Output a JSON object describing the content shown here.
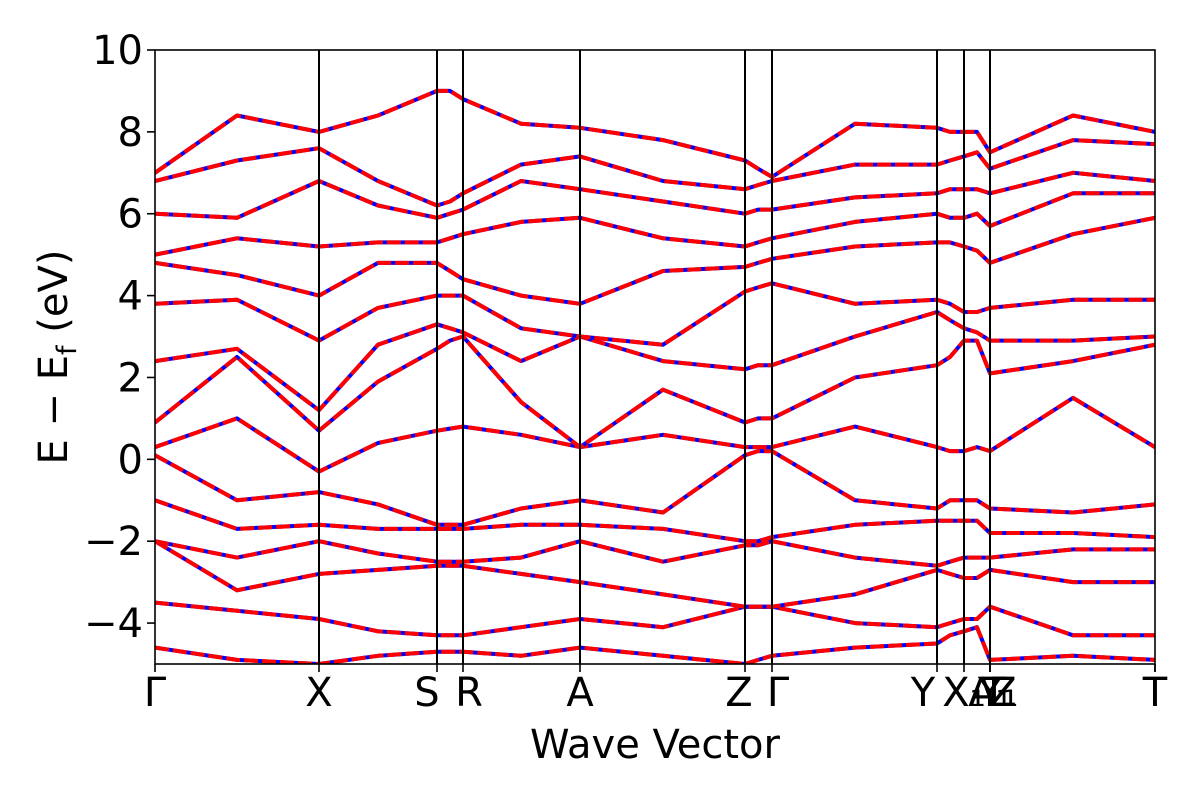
{
  "chart_data": {
    "type": "line",
    "xlabel": "Wave Vector",
    "ylabel_parts": {
      "main": "E − E",
      "sub": "f",
      "unit": " (eV)"
    },
    "ylim": [
      -5,
      10
    ],
    "yticks": [
      -4,
      -2,
      0,
      2,
      4,
      6,
      8,
      10
    ],
    "ytick_labels": [
      "−4",
      "−2",
      "0",
      "2",
      "4",
      "6",
      "8",
      "10"
    ],
    "x_range": [
      0,
      1000
    ],
    "high_symmetry_points": [
      {
        "label": "Γ",
        "x": 0
      },
      {
        "label": "X",
        "x": 164
      },
      {
        "label": "S",
        "x": 282
      },
      {
        "label": "R",
        "x": 308
      },
      {
        "label": "A",
        "x": 425
      },
      {
        "label": "Z",
        "x": 590
      },
      {
        "label": "Γ",
        "x": 617
      },
      {
        "label": "Y",
        "x": 782
      },
      {
        "label": "X₁",
        "x": 809
      },
      {
        "label": "A₁",
        "x": 835
      },
      {
        "label": "T",
        "x": 835
      },
      {
        "label": "Y₁",
        "x": 835
      },
      {
        "label": "Z",
        "x": 1000
      },
      {
        "label": "T",
        "x": 1000
      }
    ],
    "bands": [
      {
        "name": "",
        "x": [
          0,
          82,
          164,
          223,
          282,
          295,
          308,
          366,
          425,
          508,
          590,
          603,
          617,
          700,
          782,
          795,
          809,
          822,
          835,
          918,
          1000
        ],
        "y": [
          -4.6,
          -4.9,
          -5.0,
          -4.8,
          -4.7,
          -4.7,
          -4.7,
          -4.8,
          -4.6,
          -4.8,
          -5.0,
          -4.9,
          -4.8,
          -4.6,
          -4.5,
          -4.3,
          -4.2,
          -4.1,
          -4.9,
          -4.8,
          -4.9
        ]
      },
      {
        "name": "",
        "x": [
          0,
          82,
          164,
          223,
          282,
          295,
          308,
          366,
          425,
          508,
          590,
          603,
          617,
          700,
          782,
          795,
          809,
          822,
          835,
          918,
          1000
        ],
        "y": [
          -3.5,
          -3.7,
          -3.9,
          -4.2,
          -4.3,
          -4.3,
          -4.3,
          -4.1,
          -3.9,
          -4.1,
          -3.6,
          -3.6,
          -3.6,
          -4.0,
          -4.1,
          -4.0,
          -3.9,
          -3.9,
          -3.6,
          -4.3,
          -4.3
        ]
      },
      {
        "name": "",
        "x": [
          0,
          82,
          164,
          223,
          282,
          295,
          308,
          366,
          425,
          508,
          590,
          603,
          617,
          700,
          782,
          795,
          809,
          822,
          835,
          918,
          1000
        ],
        "y": [
          -2.0,
          -3.2,
          -2.8,
          -2.7,
          -2.6,
          -2.6,
          -2.6,
          -2.8,
          -3.0,
          -3.3,
          -3.6,
          -3.6,
          -3.6,
          -3.3,
          -2.7,
          -2.8,
          -2.9,
          -2.9,
          -2.7,
          -3.0,
          -3.0
        ]
      },
      {
        "name": "",
        "x": [
          0,
          82,
          164,
          223,
          282,
          295,
          308,
          366,
          425,
          508,
          590,
          603,
          617,
          700,
          782,
          795,
          809,
          822,
          835,
          918,
          1000
        ],
        "y": [
          -2.0,
          -2.4,
          -2.0,
          -2.3,
          -2.5,
          -2.5,
          -2.5,
          -2.4,
          -2.0,
          -2.5,
          -2.1,
          -2.1,
          -2.0,
          -2.4,
          -2.6,
          -2.5,
          -2.4,
          -2.4,
          -2.4,
          -2.2,
          -2.2
        ]
      },
      {
        "name": "",
        "x": [
          0,
          82,
          164,
          223,
          282,
          295,
          308,
          366,
          425,
          508,
          590,
          603,
          617,
          700,
          782,
          795,
          809,
          822,
          835,
          918,
          1000
        ],
        "y": [
          -1.0,
          -1.7,
          -1.6,
          -1.7,
          -1.7,
          -1.7,
          -1.7,
          -1.6,
          -1.6,
          -1.7,
          -2.0,
          -2.0,
          -1.9,
          -1.6,
          -1.5,
          -1.5,
          -1.5,
          -1.5,
          -1.8,
          -1.8,
          -1.9
        ]
      },
      {
        "name": "",
        "x": [
          0,
          82,
          164,
          223,
          282,
          295,
          308,
          366,
          425,
          508,
          590,
          603,
          617,
          700,
          782,
          795,
          809,
          822,
          835,
          918,
          1000
        ],
        "y": [
          0.1,
          -1.0,
          -0.8,
          -1.1,
          -1.6,
          -1.6,
          -1.6,
          -1.2,
          -1.0,
          -1.3,
          0.1,
          0.2,
          0.2,
          -1.0,
          -1.2,
          -1.0,
          -1.0,
          -1.0,
          -1.2,
          -1.3,
          -1.1
        ]
      },
      {
        "name": "",
        "x": [
          0,
          82,
          164,
          223,
          282,
          295,
          308,
          366,
          425,
          508,
          590,
          603,
          617,
          700,
          782,
          795,
          809,
          822,
          835,
          918,
          1000
        ],
        "y": [
          0.3,
          1.0,
          -0.3,
          0.4,
          0.7,
          0.75,
          0.8,
          0.6,
          0.3,
          0.6,
          0.3,
          0.3,
          0.3,
          0.8,
          0.3,
          0.2,
          0.2,
          0.3,
          0.2,
          1.5,
          0.3
        ]
      },
      {
        "name": "",
        "x": [
          0,
          82,
          164,
          223,
          282,
          295,
          308,
          366,
          425,
          508,
          590,
          603,
          617,
          700,
          782,
          795,
          809,
          822,
          835,
          918,
          1000
        ],
        "y": [
          0.9,
          2.5,
          0.7,
          1.9,
          2.7,
          2.9,
          3.0,
          1.4,
          0.3,
          1.7,
          0.9,
          1.0,
          1.0,
          2.0,
          2.3,
          2.5,
          2.9,
          2.9,
          2.1,
          2.4,
          2.8
        ]
      },
      {
        "name": "",
        "x": [
          0,
          82,
          164,
          223,
          282,
          295,
          308,
          366,
          425,
          508,
          590,
          603,
          617,
          700,
          782,
          795,
          809,
          822,
          835,
          918,
          1000
        ],
        "y": [
          2.4,
          2.7,
          1.2,
          2.8,
          3.3,
          3.2,
          3.1,
          2.4,
          3.0,
          2.4,
          2.2,
          2.3,
          2.3,
          3.0,
          3.6,
          3.4,
          3.2,
          3.1,
          2.9,
          2.9,
          3.0
        ]
      },
      {
        "name": "",
        "x": [
          0,
          82,
          164,
          223,
          282,
          295,
          308,
          366,
          425,
          508,
          590,
          603,
          617,
          700,
          782,
          795,
          809,
          822,
          835,
          918,
          1000
        ],
        "y": [
          3.8,
          3.9,
          2.9,
          3.7,
          4.0,
          4.0,
          4.0,
          3.2,
          3.0,
          2.8,
          4.1,
          4.2,
          4.3,
          3.8,
          3.9,
          3.8,
          3.6,
          3.6,
          3.7,
          3.9,
          3.9
        ]
      },
      {
        "name": "",
        "x": [
          0,
          82,
          164,
          223,
          282,
          295,
          308,
          366,
          425,
          508,
          590,
          603,
          617,
          700,
          782,
          795,
          809,
          822,
          835,
          918,
          1000
        ],
        "y": [
          4.8,
          4.5,
          4.0,
          4.8,
          4.8,
          4.6,
          4.4,
          4.0,
          3.8,
          4.6,
          4.7,
          4.8,
          4.9,
          5.2,
          5.3,
          5.3,
          5.2,
          5.1,
          4.8,
          5.5,
          5.9
        ]
      },
      {
        "name": "",
        "x": [
          0,
          82,
          164,
          223,
          282,
          295,
          308,
          366,
          425,
          508,
          590,
          603,
          617,
          700,
          782,
          795,
          809,
          822,
          835,
          918,
          1000
        ],
        "y": [
          5.0,
          5.4,
          5.2,
          5.3,
          5.3,
          5.4,
          5.5,
          5.8,
          5.9,
          5.4,
          5.2,
          5.3,
          5.4,
          5.8,
          6.0,
          5.9,
          5.9,
          6.0,
          5.7,
          6.5,
          6.5
        ]
      },
      {
        "name": "",
        "x": [
          0,
          82,
          164,
          223,
          282,
          295,
          308,
          366,
          425,
          508,
          590,
          603,
          617,
          700,
          782,
          795,
          809,
          822,
          835,
          918,
          1000
        ],
        "y": [
          6.0,
          5.9,
          6.8,
          6.2,
          5.9,
          6.0,
          6.1,
          6.8,
          6.6,
          6.3,
          6.0,
          6.1,
          6.1,
          6.4,
          6.5,
          6.6,
          6.6,
          6.6,
          6.5,
          7.0,
          6.8
        ]
      },
      {
        "name": "",
        "x": [
          0,
          82,
          164,
          223,
          282,
          295,
          308,
          366,
          425,
          508,
          590,
          603,
          617,
          700,
          782,
          795,
          809,
          822,
          835,
          918,
          1000
        ],
        "y": [
          6.8,
          7.3,
          7.6,
          6.8,
          6.2,
          6.3,
          6.5,
          7.2,
          7.4,
          6.8,
          6.6,
          6.7,
          6.8,
          7.2,
          7.2,
          7.3,
          7.4,
          7.5,
          7.1,
          7.8,
          7.7
        ]
      },
      {
        "name": "",
        "x": [
          0,
          82,
          164,
          223,
          282,
          295,
          308,
          366,
          425,
          508,
          590,
          603,
          617,
          700,
          782,
          795,
          809,
          822,
          835,
          918,
          1000
        ],
        "y": [
          7.0,
          8.4,
          8.0,
          8.4,
          9.0,
          9.0,
          8.8,
          8.2,
          8.1,
          7.8,
          7.3,
          7.1,
          6.9,
          8.2,
          8.1,
          8.0,
          8.0,
          8.0,
          7.5,
          8.4,
          8.0
        ]
      }
    ],
    "series_colors": {
      "primary": "#0000ff",
      "overlay": "#ff0000"
    }
  }
}
